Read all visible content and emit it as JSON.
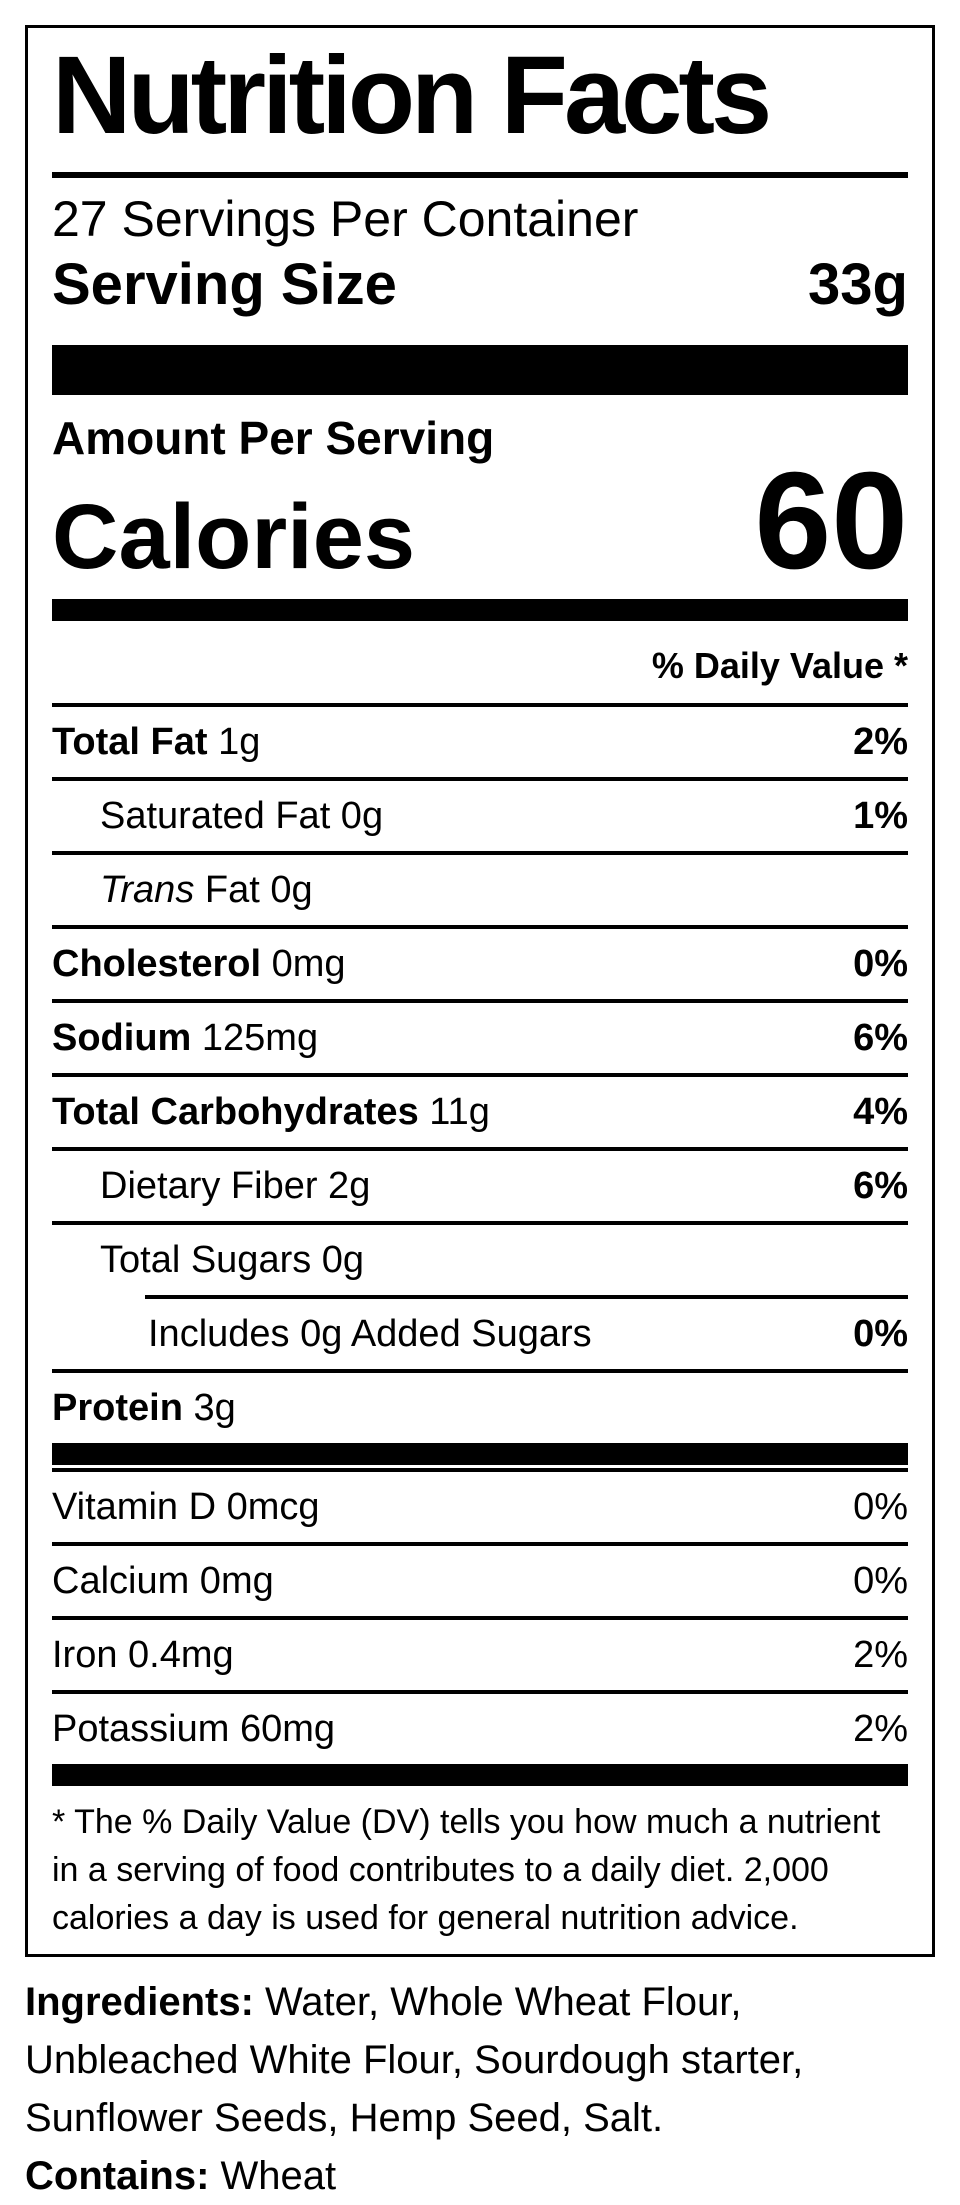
{
  "colors": {
    "ink": "#000000",
    "paper": "#ffffff"
  },
  "label": {
    "title": "Nutrition Facts",
    "servings_per_container": "27 Servings Per Container",
    "serving_size": {
      "label": "Serving Size",
      "value": "33g"
    },
    "amount_per_serving": "Amount Per Serving",
    "calories": {
      "label": "Calories",
      "value": "60"
    },
    "daily_value_header": "% Daily Value *",
    "nutrient_rows": [
      {
        "label": "Total Fat",
        "label_bold": true,
        "italic_prefix": "",
        "qty": "1g",
        "dv": "2%",
        "dv_bold": true,
        "indent": 0,
        "rule_below": "full"
      },
      {
        "label": "Saturated Fat",
        "label_bold": false,
        "italic_prefix": "",
        "qty": "0g",
        "dv": "1%",
        "dv_bold": true,
        "indent": 1,
        "rule_below": "full"
      },
      {
        "label": "Fat",
        "label_bold": false,
        "italic_prefix": "Trans",
        "qty": "0g",
        "dv": "",
        "dv_bold": false,
        "indent": 1,
        "rule_below": "full"
      },
      {
        "label": "Cholesterol",
        "label_bold": true,
        "italic_prefix": "",
        "qty": "0mg",
        "dv": "0%",
        "dv_bold": true,
        "indent": 0,
        "rule_below": "full"
      },
      {
        "label": "Sodium",
        "label_bold": true,
        "italic_prefix": "",
        "qty": "125mg",
        "dv": "6%",
        "dv_bold": true,
        "indent": 0,
        "rule_below": "full"
      },
      {
        "label": "Total Carbohydrates",
        "label_bold": true,
        "italic_prefix": "",
        "qty": "11g",
        "dv": "4%",
        "dv_bold": true,
        "indent": 0,
        "rule_below": "full"
      },
      {
        "label": "Dietary Fiber",
        "label_bold": false,
        "italic_prefix": "",
        "qty": "2g",
        "dv": "6%",
        "dv_bold": true,
        "indent": 1,
        "rule_below": "full"
      },
      {
        "label": "Total Sugars",
        "label_bold": false,
        "italic_prefix": "",
        "qty": "0g",
        "dv": "",
        "dv_bold": false,
        "indent": 1,
        "rule_below": "indented"
      },
      {
        "label": "Includes 0g Added Sugars",
        "label_bold": false,
        "italic_prefix": "",
        "qty": "",
        "dv": "0%",
        "dv_bold": true,
        "indent": 2,
        "rule_below": "full"
      },
      {
        "label": "Protein",
        "label_bold": true,
        "italic_prefix": "",
        "qty": "3g",
        "dv": "",
        "dv_bold": false,
        "indent": 0,
        "rule_below": "none"
      }
    ],
    "vitamin_rows": [
      {
        "label": "Vitamin D 0mcg",
        "dv": "0%"
      },
      {
        "label": "Calcium 0mg",
        "dv": "0%"
      },
      {
        "label": "Iron 0.4mg",
        "dv": "2%"
      },
      {
        "label": "Potassium 60mg",
        "dv": "2%"
      }
    ],
    "footnote": "* The % Daily Value (DV) tells you how much a nutrient in a serving of food contributes to a daily diet. 2,000 calories a day is used for general nutrition advice."
  },
  "ingredients": {
    "label": "Ingredients:",
    "text": " Water, Whole Wheat Flour, Unbleached White Flour, Sourdough starter, Sunflower Seeds, Hemp Seed, Salt."
  },
  "contains": {
    "label": "Contains:",
    "text": " Wheat"
  }
}
